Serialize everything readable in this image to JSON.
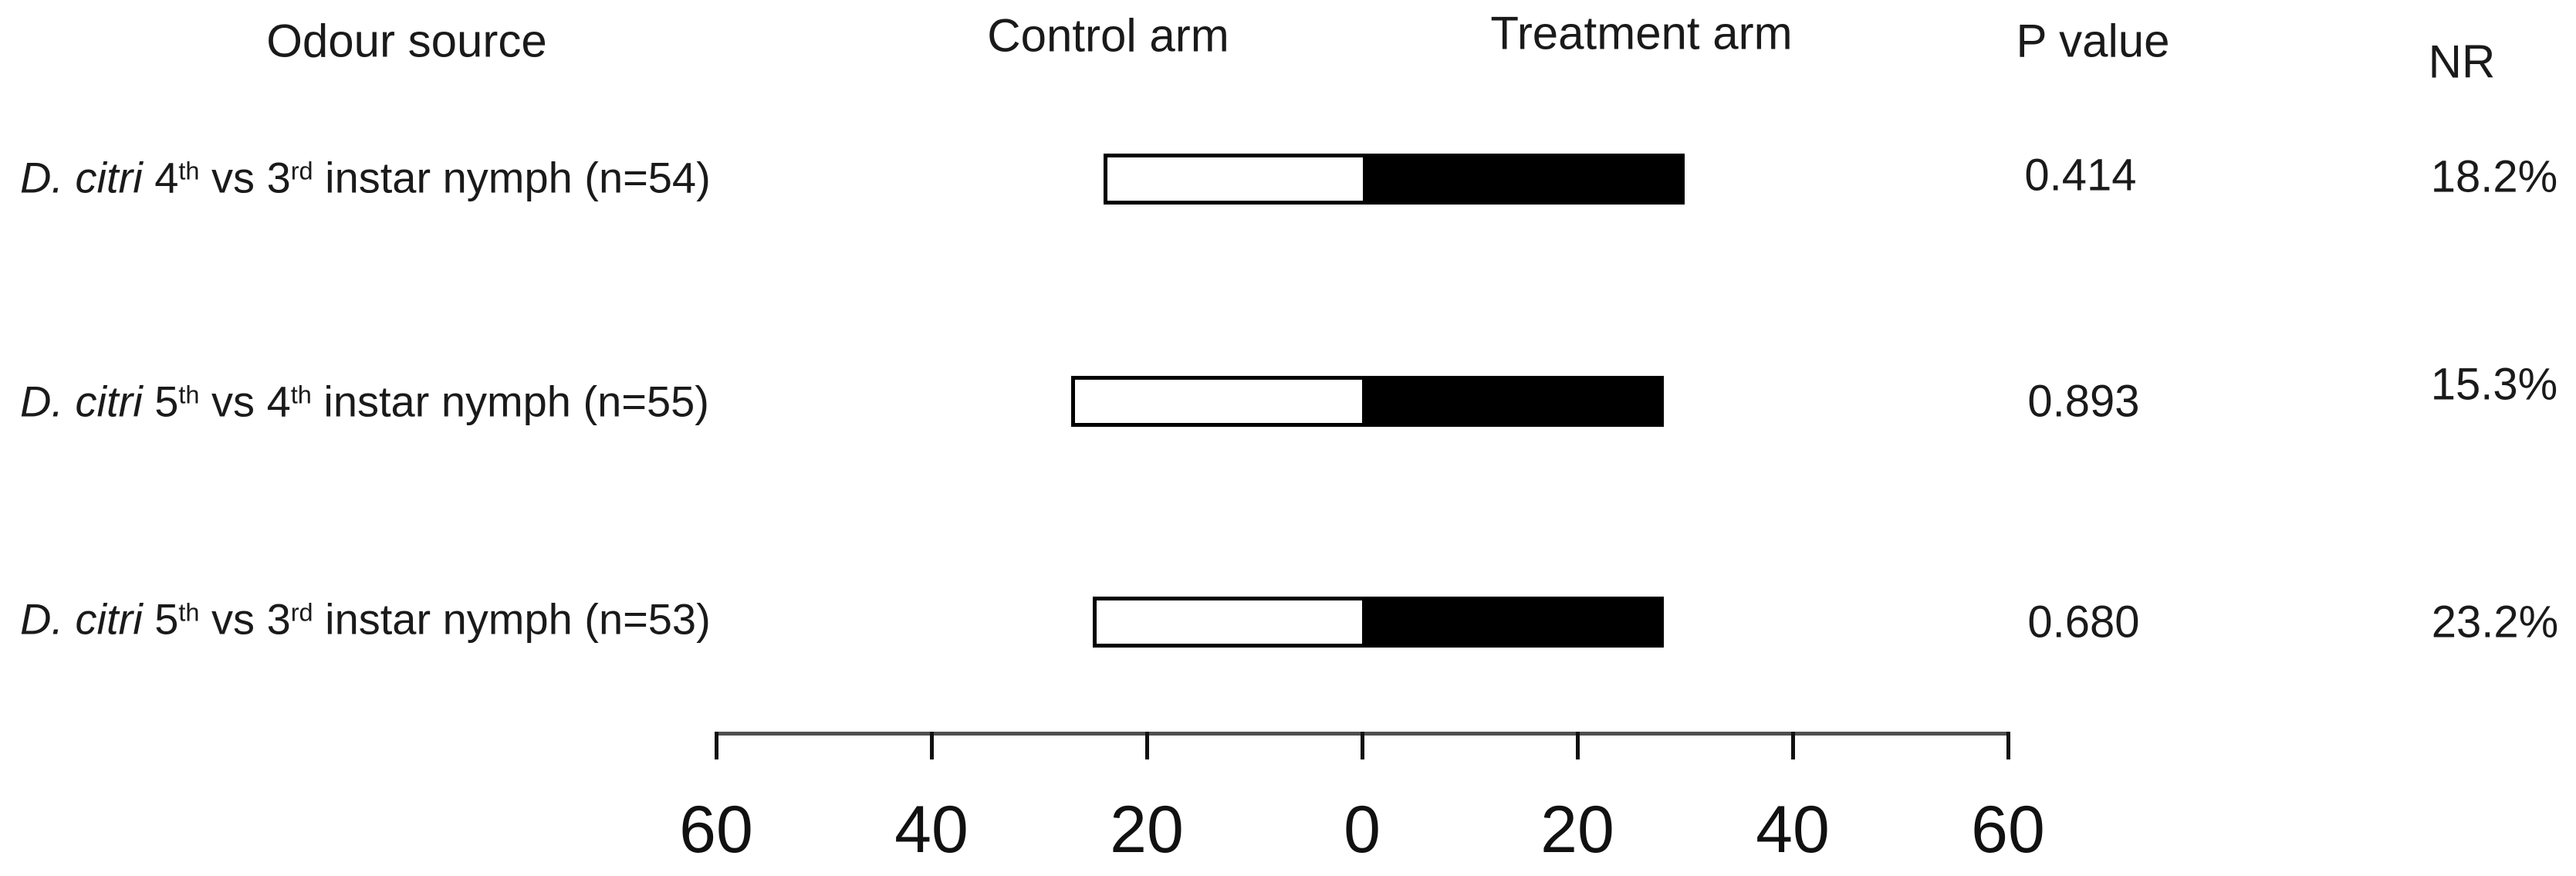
{
  "figure_headers": {
    "odour_source": "Odour source",
    "control_arm": "Control arm",
    "treatment_arm": "Treatment arm",
    "p_value": "P value",
    "nr": "NR"
  },
  "chart_data": {
    "type": "bar",
    "subtype": "diverging-horizontal-two-choice",
    "title": "",
    "xlabel": "",
    "ylabel": "Odour source",
    "categories": [
      "D. citri 4th vs 3rd instar nymph (n=54)",
      "D. citri 5th vs 4th instar nymph (n=55)",
      "D. citri 5th vs 3rd instar nymph (n=53)"
    ],
    "series": [
      {
        "name": "Control arm",
        "side": "left",
        "values": [
          24,
          27,
          25
        ]
      },
      {
        "name": "Treatment arm",
        "side": "right",
        "values": [
          30,
          28,
          28
        ]
      }
    ],
    "axis": {
      "xlim": [
        -60,
        60
      ],
      "tick_values": [
        -60,
        -40,
        -20,
        0,
        20,
        40,
        60
      ],
      "tick_labels": [
        "60",
        "40",
        "20",
        "0",
        "20",
        "40",
        "60"
      ],
      "grid": false
    },
    "rows": [
      {
        "label": {
          "species": "D. citri",
          "seg1": " 4",
          "sup1": "th",
          "seg2": " vs 3",
          "sup2": "rd",
          "seg3": " instar nymph (n=54)"
        },
        "n": 54,
        "control": 24,
        "treatment": 30,
        "p_value": "0.414",
        "nr": "18.2%"
      },
      {
        "label": {
          "species": "D. citri",
          "seg1": " 5",
          "sup1": "th",
          "seg2": " vs 4",
          "sup2": "th",
          "seg3": " instar nymph (n=55)"
        },
        "n": 55,
        "control": 27,
        "treatment": 28,
        "p_value": "0.893",
        "nr": "15.3%"
      },
      {
        "label": {
          "species": "D. citri",
          "seg1": " 5",
          "sup1": "th",
          "seg2": " vs 3",
          "sup2": "rd",
          "seg3": " instar nymph (n=53)"
        },
        "n": 53,
        "control": 25,
        "treatment": 28,
        "p_value": "0.680",
        "nr": "23.2%"
      }
    ],
    "colors": {
      "control_fill": "#ffffff",
      "treatment_fill": "#000000",
      "bar_border": "#000000",
      "axis_line": "#4f4f4f",
      "text": "#1a1a1a"
    },
    "legend_position": "column-headers"
  }
}
